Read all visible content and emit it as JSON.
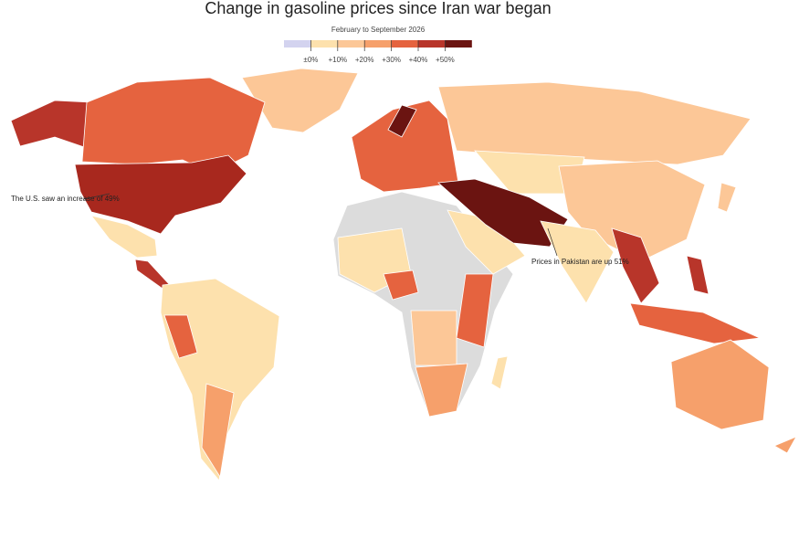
{
  "header": {
    "title": "Change in gasoline prices since Iran war began",
    "subtitle": "February to September 2026"
  },
  "legend": {
    "labels": [
      "±0%",
      "+10%",
      "+20%",
      "+30%",
      "+40%",
      "+50%"
    ],
    "colors": [
      "#d3d3ef",
      "#fde1ad",
      "#fcc797",
      "#f6a06b",
      "#e5633f",
      "#b8352a",
      "#6b1411"
    ]
  },
  "annotations": [
    "The U.S. saw an increase of 49%",
    "Prices in Pakistan are up 51%"
  ]
}
